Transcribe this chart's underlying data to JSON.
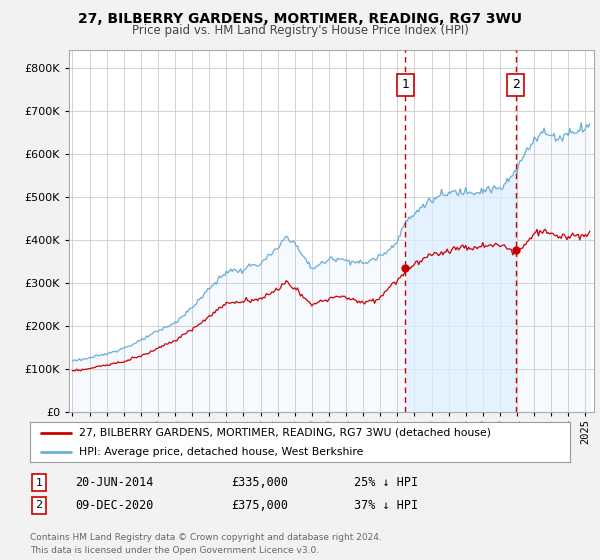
{
  "title": "27, BILBERRY GARDENS, MORTIMER, READING, RG7 3WU",
  "subtitle": "Price paid vs. HM Land Registry's House Price Index (HPI)",
  "legend_line1": "27, BILBERRY GARDENS, MORTIMER, READING, RG7 3WU (detached house)",
  "legend_line2": "HPI: Average price, detached house, West Berkshire",
  "annotation1_label": "1",
  "annotation1_date": "20-JUN-2014",
  "annotation1_price": "£335,000",
  "annotation1_hpi": "25% ↓ HPI",
  "annotation2_label": "2",
  "annotation2_date": "09-DEC-2020",
  "annotation2_price": "£375,000",
  "annotation2_hpi": "37% ↓ HPI",
  "footer": "Contains HM Land Registry data © Crown copyright and database right 2024.\nThis data is licensed under the Open Government Licence v3.0.",
  "sale1_year": 2014.47,
  "sale1_value": 335000,
  "sale2_year": 2020.92,
  "sale2_value": 375000,
  "hpi_color": "#6baed6",
  "hpi_fill_color": "#ddeeff",
  "price_color": "#cc0000",
  "vline_color": "#cc0000",
  "background_color": "#f2f2f2",
  "plot_bg_color": "#ffffff",
  "grid_color": "#cccccc",
  "ylim_min": 0,
  "ylim_max": 840000,
  "xmin": 1994.8,
  "xmax": 2025.5
}
